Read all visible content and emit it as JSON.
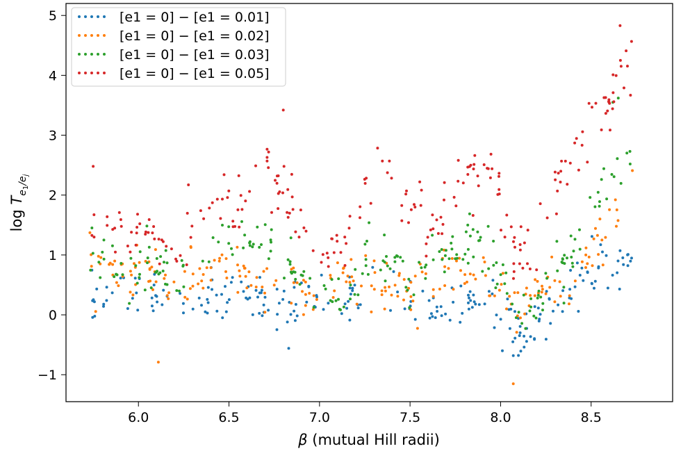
{
  "chart_data": {
    "type": "scatter",
    "xlabel": "β (mutual Hill radii)",
    "ylabel": "log T_{e1/ej}",
    "xlim": [
      5.6,
      8.95
    ],
    "ylim": [
      -1.45,
      5.2
    ],
    "xticks": [
      "6.0",
      "6.5",
      "7.0",
      "7.5",
      "8.0",
      "8.5"
    ],
    "xtick_values": [
      6.0,
      6.5,
      7.0,
      7.5,
      8.0,
      8.5
    ],
    "yticks": [
      "−1",
      "0",
      "1",
      "2",
      "3",
      "4",
      "5"
    ],
    "ytick_values": [
      -1,
      0,
      1,
      2,
      3,
      4,
      5
    ],
    "grid": false,
    "legend_position": "top-left",
    "x_range": [
      5.73,
      8.73
    ],
    "points_per_series": 230,
    "series": [
      {
        "name": "[e1 = 0] − [e1 = 0.01]",
        "color": "#1f77b4",
        "trend": [
          [
            5.73,
            0.3
          ],
          [
            6.0,
            0.3
          ],
          [
            6.3,
            0.2
          ],
          [
            6.6,
            0.3
          ],
          [
            7.0,
            0.2
          ],
          [
            7.3,
            0.4
          ],
          [
            7.6,
            0.2
          ],
          [
            7.9,
            0.3
          ],
          [
            8.1,
            -0.3
          ],
          [
            8.3,
            0.2
          ],
          [
            8.5,
            0.7
          ],
          [
            8.73,
            1.0
          ]
        ],
        "spread": 0.35,
        "outliers": [
          [
            6.83,
            -0.56
          ],
          [
            8.07,
            -0.68
          ],
          [
            8.01,
            -0.6
          ]
        ]
      },
      {
        "name": "[e1 = 0] − [e1 = 0.02]",
        "color": "#ff7f0e",
        "trend": [
          [
            5.73,
            0.8
          ],
          [
            6.0,
            0.7
          ],
          [
            6.2,
            0.5
          ],
          [
            6.4,
            0.8
          ],
          [
            6.6,
            0.6
          ],
          [
            6.8,
            0.5
          ],
          [
            7.0,
            0.3
          ],
          [
            7.2,
            0.7
          ],
          [
            7.5,
            0.3
          ],
          [
            7.7,
            0.7
          ],
          [
            7.9,
            0.5
          ],
          [
            8.1,
            0.2
          ],
          [
            8.3,
            0.4
          ],
          [
            8.5,
            1.0
          ],
          [
            8.73,
            2.3
          ]
        ],
        "spread": 0.35,
        "outliers": [
          [
            6.11,
            -0.79
          ],
          [
            8.07,
            -1.15
          ]
        ]
      },
      {
        "name": "[e1 = 0] − [e1 = 0.03]",
        "color": "#2ca02c",
        "trend": [
          [
            5.73,
            1.2
          ],
          [
            5.9,
            0.6
          ],
          [
            6.1,
            0.8
          ],
          [
            6.3,
            0.4
          ],
          [
            6.5,
            1.4
          ],
          [
            6.7,
            1.0
          ],
          [
            6.9,
            0.6
          ],
          [
            7.0,
            0.1
          ],
          [
            7.2,
            0.5
          ],
          [
            7.3,
            1.1
          ],
          [
            7.5,
            0.8
          ],
          [
            7.7,
            1.1
          ],
          [
            7.9,
            1.3
          ],
          [
            8.1,
            -0.1
          ],
          [
            8.3,
            0.6
          ],
          [
            8.45,
            1.3
          ],
          [
            8.6,
            2.3
          ],
          [
            8.73,
            2.8
          ]
        ],
        "spread": 0.4,
        "outliers": [
          [
            8.65,
            3.62
          ],
          [
            8.62,
            3.55
          ]
        ]
      },
      {
        "name": "[e1 = 0] − [e1 = 0.05]",
        "color": "#d62728",
        "trend": [
          [
            5.73,
            1.6
          ],
          [
            5.9,
            1.3
          ],
          [
            6.0,
            1.7
          ],
          [
            6.2,
            0.9
          ],
          [
            6.4,
            2.0
          ],
          [
            6.55,
            1.8
          ],
          [
            6.7,
            2.4
          ],
          [
            6.9,
            1.5
          ],
          [
            7.0,
            0.8
          ],
          [
            7.15,
            1.4
          ],
          [
            7.3,
            2.4
          ],
          [
            7.5,
            1.8
          ],
          [
            7.6,
            1.3
          ],
          [
            7.75,
            2.3
          ],
          [
            7.9,
            2.5
          ],
          [
            8.0,
            2.1
          ],
          [
            8.1,
            0.8
          ],
          [
            8.2,
            1.1
          ],
          [
            8.3,
            2.1
          ],
          [
            8.45,
            3.0
          ],
          [
            8.6,
            3.6
          ],
          [
            8.73,
            4.3
          ]
        ],
        "spread": 0.45,
        "outliers": [
          [
            5.75,
            2.48
          ],
          [
            6.8,
            3.42
          ],
          [
            8.66,
            4.83
          ]
        ]
      }
    ]
  }
}
